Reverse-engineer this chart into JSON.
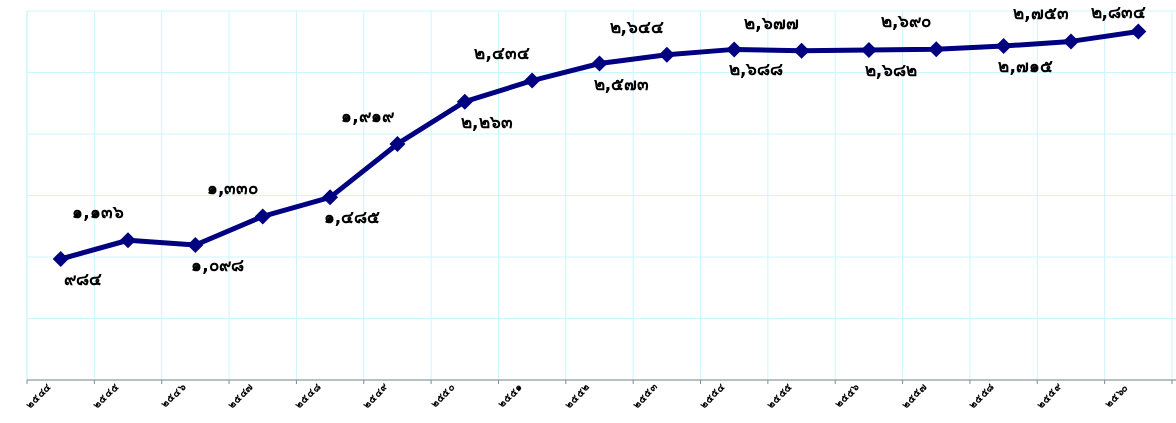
{
  "chart_data": {
    "type": "line",
    "categories": [
      "๒๕๔๔",
      "๒๕๔๕",
      "๒๕๔๖",
      "๒๕๔๗",
      "๒๕๔๘",
      "๒๕๔๙",
      "๒๕๕๐",
      "๒๕๕๑",
      "๒๕๕๒",
      "๒๕๕๓",
      "๒๕๕๔",
      "๒๕๕๕",
      "๒๕๕๖",
      "๒๕๕๗",
      "๒๕๕๘",
      "๒๕๕๙",
      "๒๕๖๐"
    ],
    "series": [
      {
        "color": "#000080",
        "values": [
          984,
          1136,
          1098,
          1330,
          1485,
          1919,
          2263,
          2434,
          2573,
          2644,
          2688,
          2677,
          2682,
          2690,
          2715,
          2753,
          2834
        ],
        "value_labels": [
          "๙๘๔",
          "๑,๑๓๖",
          "๑,๐๙๘",
          "๑,๓๓๐",
          "๑,๔๘๕",
          "๑,๙๑๙",
          "๒,๒๖๓",
          "๒,๔๓๔",
          "๒,๕๗๓",
          "๒,๖๔๔",
          "๒,๖๘๘",
          "๒,๖๗๗",
          "๒,๖๘๒",
          "๒,๖๙๐",
          "๒,๗๑๕",
          "๒,๗๕๓",
          "๒,๘๓๔"
        ]
      }
    ],
    "ylim": [
      0,
      3000
    ],
    "yticks": [
      {
        "value": 0,
        "label": null
      },
      {
        "value": 500,
        "label": null
      },
      {
        "value": 1000,
        "label": null
      },
      {
        "value": 1500,
        "label": null
      },
      {
        "value": 2000,
        "label": null
      },
      {
        "value": 2500,
        "label": null
      },
      {
        "value": 3000,
        "label": null
      }
    ],
    "tick_labels": "x",
    "grid": true,
    "marker": "diamond",
    "line_style": "solid"
  }
}
